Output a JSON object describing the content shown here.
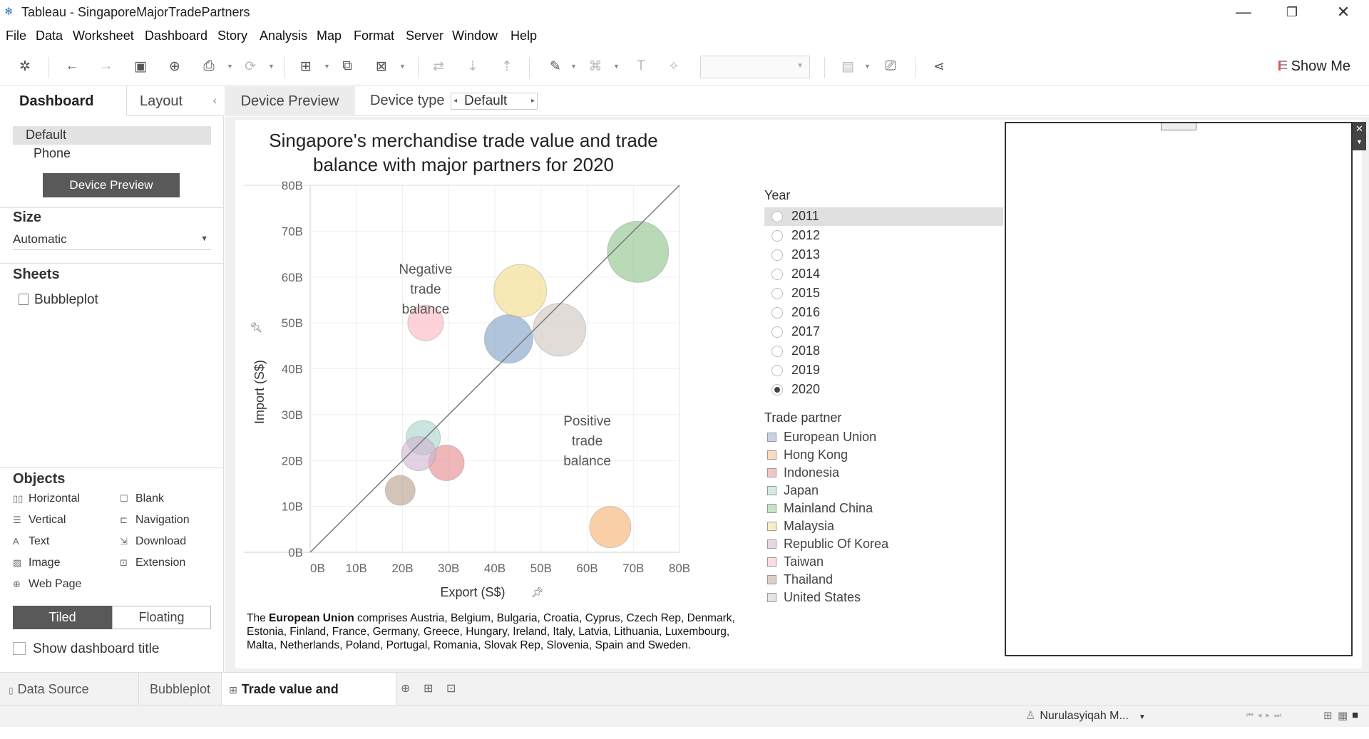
{
  "window": {
    "title": "Tableau - SingaporeMajorTradePartners"
  },
  "menu": [
    "File",
    "Data",
    "Worksheet",
    "Dashboard",
    "Story",
    "Analysis",
    "Map",
    "Format",
    "Server",
    "Window",
    "Help"
  ],
  "toolbar": {
    "show_me": "Show Me"
  },
  "left_panel": {
    "tabs": [
      "Dashboard",
      "Layout"
    ],
    "devices": [
      "Default",
      "Phone"
    ],
    "device_preview_button": "Device Preview",
    "size_heading": "Size",
    "size_value": "Automatic",
    "sheets_heading": "Sheets",
    "sheets": [
      "Bubbleplot"
    ],
    "objects_heading": "Objects",
    "objects": [
      "Horizontal",
      "Blank",
      "Vertical",
      "Navigation",
      "Text",
      "Download",
      "Image",
      "Extension",
      "Web Page"
    ],
    "tiled": "Tiled",
    "floating": "Floating",
    "show_title": "Show dashboard title"
  },
  "device_bar": {
    "preview": "Device Preview",
    "type_label": "Device type",
    "type_value": "Default"
  },
  "chart_data": {
    "type": "scatter",
    "title": "Singapore's merchandise trade value and trade balance with major partners for 2020",
    "xlabel": "Export (S$)",
    "ylabel": "Import (S$)",
    "xlim": [
      0,
      80
    ],
    "ylim": [
      0,
      80
    ],
    "x_ticks": [
      "0B",
      "10B",
      "20B",
      "30B",
      "40B",
      "50B",
      "60B",
      "70B",
      "80B"
    ],
    "y_ticks": [
      "0B",
      "10B",
      "20B",
      "30B",
      "40B",
      "50B",
      "60B",
      "70B",
      "80B"
    ],
    "annotations": [
      "Negative trade balance",
      "Positive trade balance"
    ],
    "points": [
      {
        "name": "European Union",
        "x": 43,
        "y": 46.5,
        "r": 34,
        "color": "#7f9fc7"
      },
      {
        "name": "Hong Kong",
        "x": 65,
        "y": 5.5,
        "r": 29,
        "color": "#f5b271"
      },
      {
        "name": "Indonesia",
        "x": 29.5,
        "y": 19.5,
        "r": 25,
        "color": "#e58a8e"
      },
      {
        "name": "Japan",
        "x": 24.5,
        "y": 25,
        "r": 24,
        "color": "#a9d4cd"
      },
      {
        "name": "Mainland China",
        "x": 71,
        "y": 65.5,
        "r": 43,
        "color": "#8cc489"
      },
      {
        "name": "Malaysia",
        "x": 45.5,
        "y": 57,
        "r": 37,
        "color": "#f2dc87"
      },
      {
        "name": "Republic Of Korea",
        "x": 23.5,
        "y": 21.5,
        "r": 24,
        "color": "#cfb5d0"
      },
      {
        "name": "Taiwan",
        "x": 25,
        "y": 50,
        "r": 25,
        "color": "#fbb8c2"
      },
      {
        "name": "Thailand",
        "x": 19.5,
        "y": 13.5,
        "r": 21,
        "color": "#b8a08c"
      },
      {
        "name": "United States",
        "x": 54,
        "y": 48.5,
        "r": 37,
        "color": "#d1c6c1"
      }
    ]
  },
  "year_filter": {
    "heading": "Year",
    "options": [
      "2011",
      "2012",
      "2013",
      "2014",
      "2015",
      "2016",
      "2017",
      "2018",
      "2019",
      "2020"
    ],
    "selected": "2020"
  },
  "legend": {
    "heading": "Trade partner",
    "items": [
      {
        "label": "European Union",
        "color": "#c5d3e6"
      },
      {
        "label": "Hong Kong",
        "color": "#fbdcbf"
      },
      {
        "label": "Indonesia",
        "color": "#f3c4c5"
      },
      {
        "label": "Japan",
        "color": "#d6eae6"
      },
      {
        "label": "Mainland China",
        "color": "#c9e3c6"
      },
      {
        "label": "Malaysia",
        "color": "#f8eec6"
      },
      {
        "label": "Republic Of Korea",
        "color": "#e6d9e7"
      },
      {
        "label": "Taiwan",
        "color": "#fcdde2"
      },
      {
        "label": "Thailand",
        "color": "#dccfc5"
      },
      {
        "label": "United States",
        "color": "#e8e3e0"
      }
    ]
  },
  "footnote": {
    "prefix": "The ",
    "bold": "European Union",
    "rest": " comprises Austria, Belgium, Bulgaria, Croatia, Cyprus, Czech Rep, Denmark, Estonia, Finland, France, Germany, Greece, Hungary, Ireland, Italy, Latvia, Lithuania, Luxembourg, Malta, Netherlands, Poland, Portugal, Romania, Slovak Rep, Slovenia, Spain and Sweden."
  },
  "sheet_tabs": [
    "Data Source",
    "Bubbleplot",
    "Trade value and balance"
  ],
  "status": {
    "user": "Nurulasyiqah M..."
  }
}
